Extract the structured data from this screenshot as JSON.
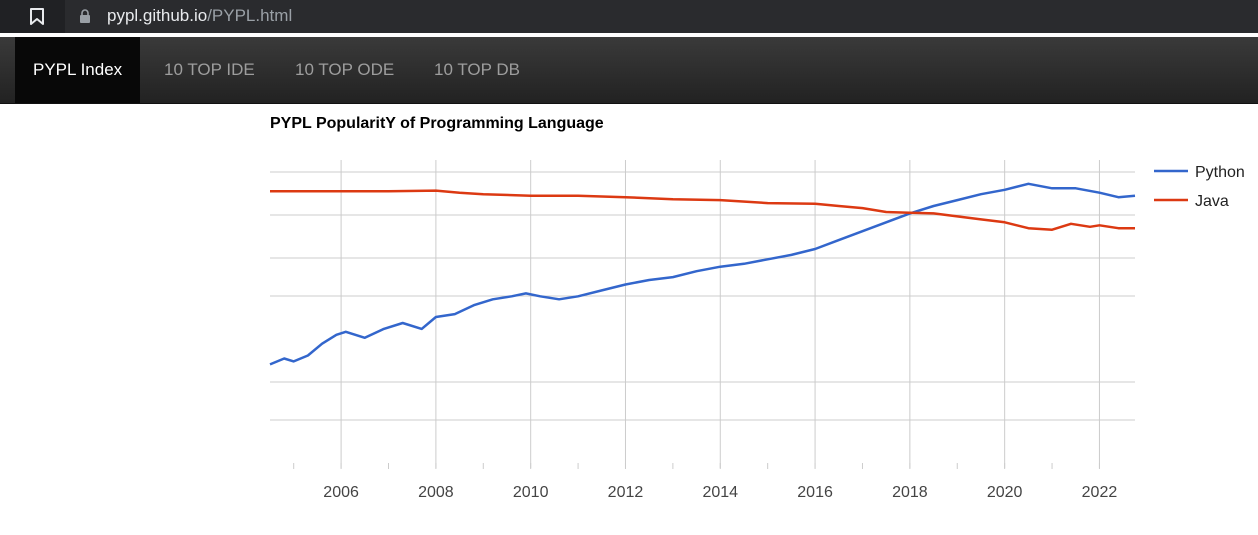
{
  "browser": {
    "url_domain": "pypl.github.io",
    "url_path": "/PYPL.html",
    "icons": {
      "bookmark": "bookmark-icon",
      "lock": "lock-icon"
    }
  },
  "nav": {
    "items": [
      {
        "label": "PYPL Index",
        "active": true
      },
      {
        "label": "10 TOP IDE",
        "active": false
      },
      {
        "label": "10 TOP ODE",
        "active": false
      },
      {
        "label": "10 TOP DB",
        "active": false
      }
    ]
  },
  "chart_data": {
    "type": "line",
    "title": "PYPL PopularitY of Programming Language",
    "x_ticks": [
      "2006",
      "2008",
      "2010",
      "2012",
      "2014",
      "2016",
      "2018",
      "2020",
      "2022"
    ],
    "xlim": [
      2004.5,
      2022.75
    ],
    "ylim": [
      0,
      1
    ],
    "grid": true,
    "legend_position": "right",
    "series": [
      {
        "name": "Python",
        "color": "#3366cc",
        "points": [
          [
            2004.5,
            0.35
          ],
          [
            2004.8,
            0.37
          ],
          [
            2005.0,
            0.36
          ],
          [
            2005.3,
            0.38
          ],
          [
            2005.6,
            0.42
          ],
          [
            2005.9,
            0.45
          ],
          [
            2006.1,
            0.46
          ],
          [
            2006.5,
            0.44
          ],
          [
            2006.9,
            0.47
          ],
          [
            2007.3,
            0.49
          ],
          [
            2007.7,
            0.47
          ],
          [
            2008.0,
            0.51
          ],
          [
            2008.4,
            0.52
          ],
          [
            2008.8,
            0.55
          ],
          [
            2009.2,
            0.57
          ],
          [
            2009.6,
            0.58
          ],
          [
            2009.9,
            0.59
          ],
          [
            2010.2,
            0.58
          ],
          [
            2010.6,
            0.57
          ],
          [
            2011.0,
            0.58
          ],
          [
            2011.5,
            0.6
          ],
          [
            2012.0,
            0.62
          ],
          [
            2012.5,
            0.635
          ],
          [
            2013.0,
            0.645
          ],
          [
            2013.5,
            0.665
          ],
          [
            2014.0,
            0.68
          ],
          [
            2014.5,
            0.69
          ],
          [
            2015.0,
            0.705
          ],
          [
            2015.5,
            0.72
          ],
          [
            2016.0,
            0.74
          ],
          [
            2016.5,
            0.77
          ],
          [
            2017.0,
            0.8
          ],
          [
            2017.5,
            0.83
          ],
          [
            2018.0,
            0.86
          ],
          [
            2018.5,
            0.885
          ],
          [
            2019.0,
            0.905
          ],
          [
            2019.5,
            0.925
          ],
          [
            2020.0,
            0.94
          ],
          [
            2020.5,
            0.96
          ],
          [
            2021.0,
            0.945
          ],
          [
            2021.5,
            0.945
          ],
          [
            2022.0,
            0.93
          ],
          [
            2022.4,
            0.915
          ],
          [
            2022.75,
            0.92
          ]
        ]
      },
      {
        "name": "Java",
        "color": "#dc3912",
        "points": [
          [
            2004.5,
            0.935
          ],
          [
            2005.0,
            0.935
          ],
          [
            2006.0,
            0.935
          ],
          [
            2007.0,
            0.935
          ],
          [
            2008.0,
            0.937
          ],
          [
            2008.5,
            0.93
          ],
          [
            2009.0,
            0.925
          ],
          [
            2010.0,
            0.92
          ],
          [
            2011.0,
            0.92
          ],
          [
            2012.0,
            0.915
          ],
          [
            2013.0,
            0.908
          ],
          [
            2014.0,
            0.905
          ],
          [
            2015.0,
            0.895
          ],
          [
            2016.0,
            0.893
          ],
          [
            2016.5,
            0.885
          ],
          [
            2017.0,
            0.878
          ],
          [
            2017.5,
            0.865
          ],
          [
            2018.0,
            0.862
          ],
          [
            2018.5,
            0.86
          ],
          [
            2019.0,
            0.85
          ],
          [
            2019.5,
            0.84
          ],
          [
            2020.0,
            0.83
          ],
          [
            2020.5,
            0.81
          ],
          [
            2021.0,
            0.805
          ],
          [
            2021.4,
            0.825
          ],
          [
            2021.8,
            0.815
          ],
          [
            2022.0,
            0.82
          ],
          [
            2022.4,
            0.81
          ],
          [
            2022.75,
            0.81
          ]
        ]
      }
    ]
  }
}
